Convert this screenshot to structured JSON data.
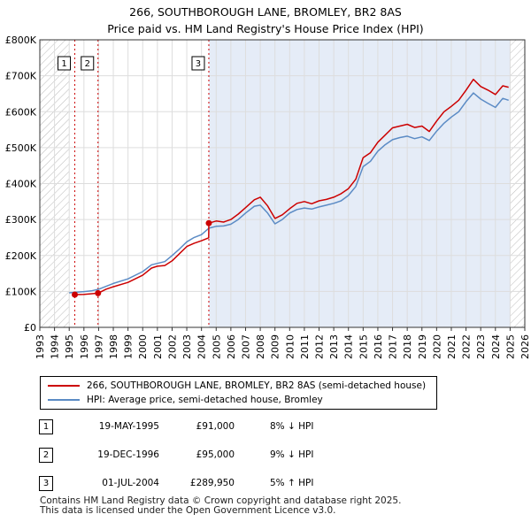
{
  "title_line1": "266, SOUTHBOROUGH LANE, BROMLEY, BR2 8AS",
  "title_line2": "Price paid vs. HM Land Registry's House Price Index (HPI)",
  "legend": {
    "red_label": "266, SOUTHBOROUGH LANE, BROMLEY, BR2 8AS (semi-detached house)",
    "blue_label": "HPI: Average price, semi-detached house, Bromley"
  },
  "colors": {
    "red": "#cc0000",
    "blue": "#5b8bc5",
    "band": "#e5ecf7",
    "hatch": "#bbbbbb"
  },
  "sales": [
    {
      "num": "1",
      "date": "19-MAY-1995",
      "price": "£91,000",
      "hpi": "8% ↓ HPI"
    },
    {
      "num": "2",
      "date": "19-DEC-1996",
      "price": "£95,000",
      "hpi": "9% ↓ HPI"
    },
    {
      "num": "3",
      "date": "01-JUL-2004",
      "price": "£289,950",
      "hpi": "5% ↑ HPI"
    }
  ],
  "footer_line1": "Contains HM Land Registry data © Crown copyright and database right 2025.",
  "footer_line2": "This data is licensed under the Open Government Licence v3.0.",
  "chart_data": {
    "type": "line",
    "title": "266, SOUTHBOROUGH LANE, BROMLEY, BR2 8AS — Price paid vs. HM Land Registry's House Price Index (HPI)",
    "xlim": [
      1993,
      2026
    ],
    "ylim": [
      0,
      800000
    ],
    "x_ticks": [
      "1993",
      "1994",
      "1995",
      "1996",
      "1997",
      "1998",
      "1999",
      "2000",
      "2001",
      "2002",
      "2003",
      "2004",
      "2005",
      "2006",
      "2007",
      "2008",
      "2009",
      "2010",
      "2011",
      "2012",
      "2013",
      "2014",
      "2015",
      "2016",
      "2017",
      "2018",
      "2019",
      "2020",
      "2021",
      "2022",
      "2023",
      "2024",
      "2025",
      "2026"
    ],
    "y_ticks": [
      0,
      100000,
      200000,
      300000,
      400000,
      500000,
      600000,
      700000,
      800000
    ],
    "y_tick_labels": [
      "£0",
      "£100K",
      "£200K",
      "£300K",
      "£400K",
      "£500K",
      "£600K",
      "£700K",
      "£800K"
    ],
    "history_hatch": [
      1993,
      1995.0
    ],
    "future_hatch": [
      2025.0,
      2026
    ],
    "post_sale_band": [
      2004.5,
      2025.0
    ],
    "sale_markers": [
      {
        "label": "1",
        "x": 1995.38,
        "y": 91000
      },
      {
        "label": "2",
        "x": 1996.96,
        "y": 95000
      },
      {
        "label": "3",
        "x": 2004.5,
        "y": 289950
      }
    ],
    "series": [
      {
        "name": "266, SOUTHBOROUGH LANE, BROMLEY, BR2 8AS (semi-detached house)",
        "color": "#cc0000",
        "points": [
          [
            1995.38,
            91000
          ],
          [
            1996.0,
            91500
          ],
          [
            1996.96,
            95000
          ],
          [
            1997.5,
            106000
          ],
          [
            1998,
            113000
          ],
          [
            1999,
            125000
          ],
          [
            2000,
            145000
          ],
          [
            2000.6,
            165000
          ],
          [
            2001,
            170000
          ],
          [
            2001.5,
            172000
          ],
          [
            2002,
            185000
          ],
          [
            2002.5,
            205000
          ],
          [
            2003,
            225000
          ],
          [
            2003.5,
            234000
          ],
          [
            2004,
            241000
          ],
          [
            2004.49,
            249000
          ],
          [
            2004.5,
            289950
          ],
          [
            2005,
            296000
          ],
          [
            2005.5,
            293000
          ],
          [
            2006,
            300000
          ],
          [
            2006.5,
            315000
          ],
          [
            2007,
            333000
          ],
          [
            2007.6,
            355000
          ],
          [
            2008,
            362000
          ],
          [
            2008.5,
            338000
          ],
          [
            2009,
            303000
          ],
          [
            2009.5,
            313000
          ],
          [
            2010,
            330000
          ],
          [
            2010.5,
            345000
          ],
          [
            2011,
            350000
          ],
          [
            2011.5,
            344000
          ],
          [
            2012,
            352000
          ],
          [
            2012.5,
            356000
          ],
          [
            2013,
            362000
          ],
          [
            2013.5,
            372000
          ],
          [
            2014,
            386000
          ],
          [
            2014.5,
            412000
          ],
          [
            2015,
            472000
          ],
          [
            2015.5,
            486000
          ],
          [
            2016,
            515000
          ],
          [
            2016.5,
            535000
          ],
          [
            2017,
            555000
          ],
          [
            2017.5,
            560000
          ],
          [
            2018,
            565000
          ],
          [
            2018.5,
            556000
          ],
          [
            2019,
            560000
          ],
          [
            2019.5,
            545000
          ],
          [
            2020,
            574000
          ],
          [
            2020.5,
            600000
          ],
          [
            2021,
            615000
          ],
          [
            2021.5,
            632000
          ],
          [
            2022,
            660000
          ],
          [
            2022.5,
            690000
          ],
          [
            2023,
            670000
          ],
          [
            2023.5,
            660000
          ],
          [
            2024,
            648000
          ],
          [
            2024.5,
            672000
          ],
          [
            2024.9,
            668000
          ]
        ]
      },
      {
        "name": "HPI: Average price, semi-detached house, Bromley",
        "color": "#5b8bc5",
        "points": [
          [
            1995,
            96000
          ],
          [
            1995.5,
            98000
          ],
          [
            1996,
            99500
          ],
          [
            1996.5,
            101500
          ],
          [
            1997,
            106000
          ],
          [
            1997.5,
            114000
          ],
          [
            1998,
            122000
          ],
          [
            1999,
            135000
          ],
          [
            2000,
            155000
          ],
          [
            2000.6,
            174000
          ],
          [
            2001,
            178000
          ],
          [
            2001.5,
            183000
          ],
          [
            2002,
            200000
          ],
          [
            2002.5,
            218000
          ],
          [
            2003,
            238000
          ],
          [
            2003.5,
            250000
          ],
          [
            2004,
            258000
          ],
          [
            2004.5,
            276000
          ],
          [
            2005,
            281000
          ],
          [
            2005.5,
            282000
          ],
          [
            2006,
            287000
          ],
          [
            2006.5,
            300000
          ],
          [
            2007,
            318000
          ],
          [
            2007.6,
            337000
          ],
          [
            2008,
            340000
          ],
          [
            2008.5,
            318000
          ],
          [
            2009,
            288000
          ],
          [
            2009.5,
            300000
          ],
          [
            2010,
            318000
          ],
          [
            2010.5,
            328000
          ],
          [
            2011,
            332000
          ],
          [
            2011.5,
            329000
          ],
          [
            2012,
            335000
          ],
          [
            2012.5,
            340000
          ],
          [
            2013,
            345000
          ],
          [
            2013.5,
            352000
          ],
          [
            2014,
            367000
          ],
          [
            2014.5,
            392000
          ],
          [
            2015,
            447000
          ],
          [
            2015.5,
            462000
          ],
          [
            2016,
            490000
          ],
          [
            2016.5,
            508000
          ],
          [
            2017,
            522000
          ],
          [
            2017.5,
            528000
          ],
          [
            2018,
            532000
          ],
          [
            2018.5,
            525000
          ],
          [
            2019,
            530000
          ],
          [
            2019.5,
            520000
          ],
          [
            2020,
            546000
          ],
          [
            2020.5,
            568000
          ],
          [
            2021,
            585000
          ],
          [
            2021.5,
            600000
          ],
          [
            2022,
            628000
          ],
          [
            2022.5,
            652000
          ],
          [
            2023,
            635000
          ],
          [
            2023.5,
            623000
          ],
          [
            2024,
            612000
          ],
          [
            2024.5,
            637000
          ],
          [
            2024.9,
            632000
          ]
        ]
      }
    ]
  }
}
